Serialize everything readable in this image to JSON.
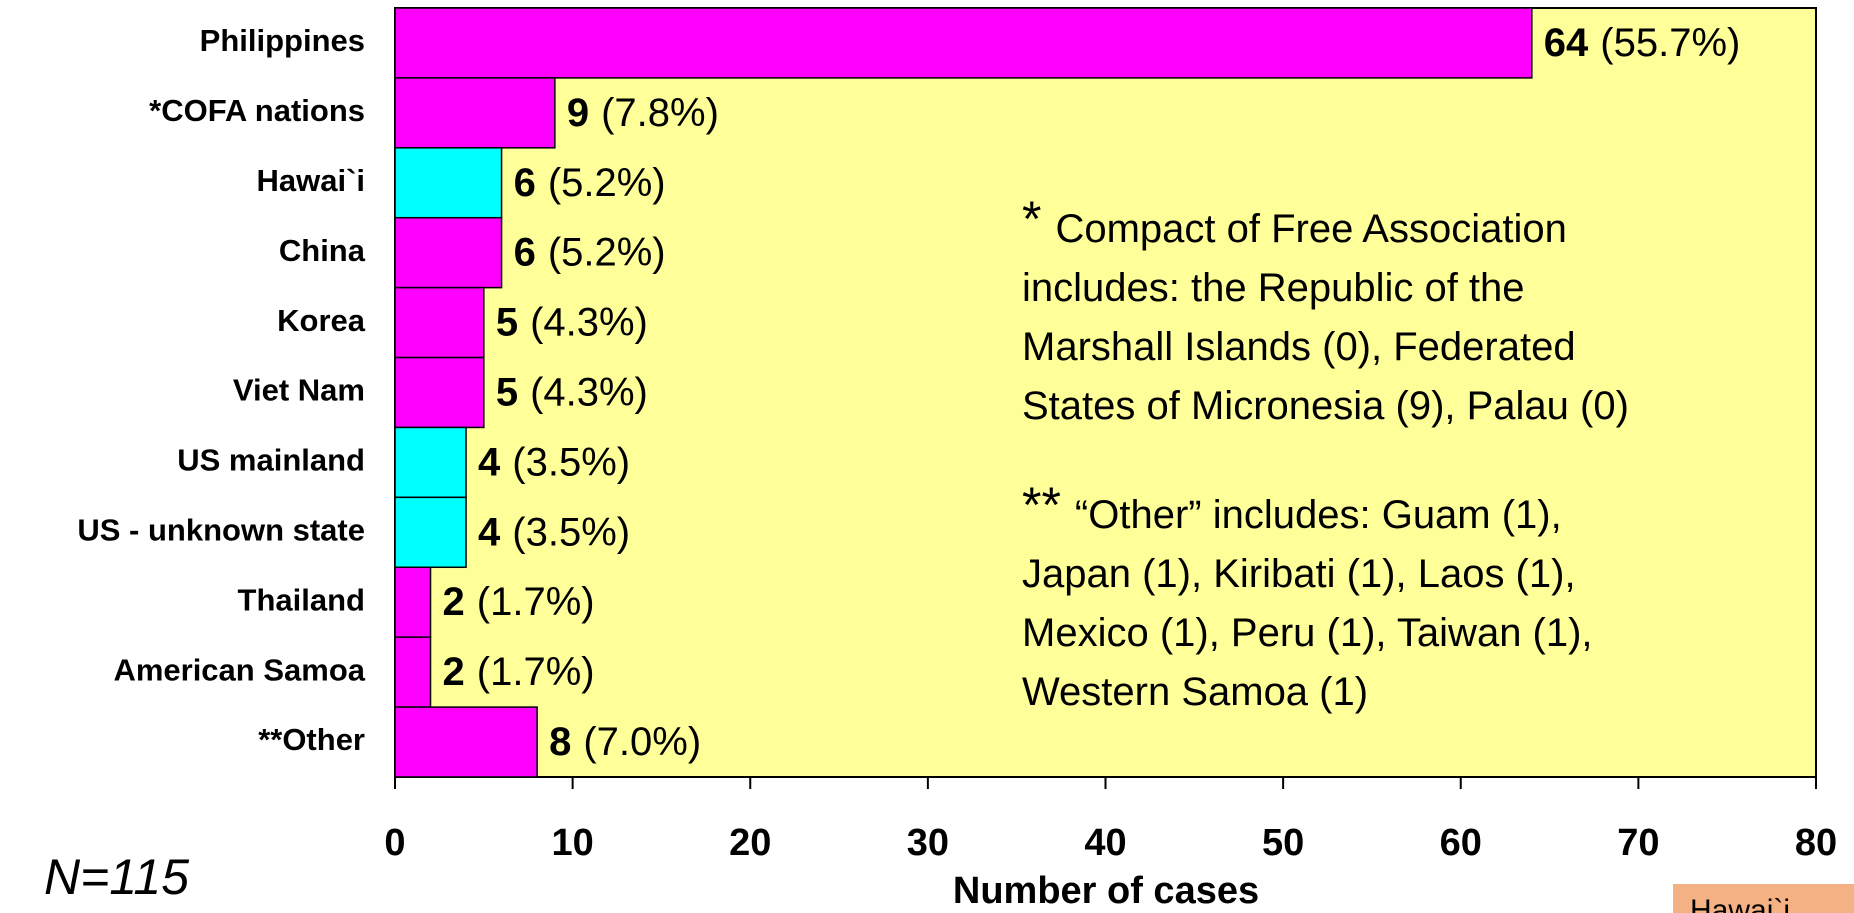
{
  "chart_data": {
    "type": "bar",
    "orientation": "horizontal",
    "categories": [
      "Philippines",
      "*COFA nations",
      "Hawai`i",
      "China",
      "Korea",
      "Viet Nam",
      "US mainland",
      "US - unknown state",
      "Thailand",
      "American Samoa",
      "**Other"
    ],
    "values": [
      64,
      9,
      6,
      6,
      5,
      5,
      4,
      4,
      2,
      2,
      8
    ],
    "percent_labels": [
      "(55.7%)",
      "(7.8%)",
      "(5.2%)",
      "(5.2%)",
      "(4.3%)",
      "(4.3%)",
      "(3.5%)",
      "(3.5%)",
      "(1.7%)",
      "(1.7%)",
      "(7.0%)"
    ],
    "colors": [
      "#ff00ff",
      "#ff00ff",
      "#00ffff",
      "#ff00ff",
      "#ff00ff",
      "#ff00ff",
      "#00ffff",
      "#00ffff",
      "#ff00ff",
      "#ff00ff",
      "#ff00ff"
    ],
    "xlim": [
      0,
      80
    ],
    "xticks": [
      0,
      10,
      20,
      30,
      40,
      50,
      60,
      70,
      80
    ],
    "x_label": "Number of cases",
    "plot_background": "#ffff99",
    "annotations": [
      {
        "marker": "*",
        "lines": [
          "Compact of Free Association",
          "includes: the Republic of the",
          "Marshall Islands (0), Federated",
          "States of Micronesia (9),  Palau (0)"
        ]
      },
      {
        "marker": "**",
        "lines": [
          "“Other” includes: Guam (1),",
          "Japan (1), Kiribati (1), Laos (1),",
          "Mexico (1), Peru (1), Taiwan (1),",
          "Western Samoa (1)"
        ]
      }
    ],
    "note": "N=115",
    "logo_text": "Hawai`i"
  }
}
